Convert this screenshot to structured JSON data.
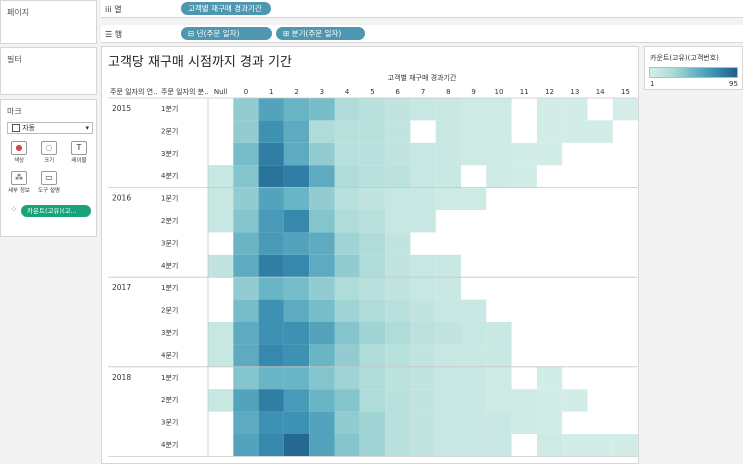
{
  "sidebar": {
    "pages_label": "페이지",
    "filters_label": "필터",
    "marks_label": "마크",
    "marks_type": "자동",
    "buttons": [
      {
        "label": "색상",
        "icon": "color-icon"
      },
      {
        "label": "크기",
        "icon": "size-icon"
      },
      {
        "label": "레이블",
        "icon": "label-icon"
      },
      {
        "label": "세부 정보",
        "icon": "detail-icon"
      },
      {
        "label": "도구 설명",
        "icon": "tooltip-icon"
      }
    ],
    "color_pill": "카운트(고유)(고..."
  },
  "shelves": {
    "columns_label": "열",
    "columns_pill": "고객별 재구매 경과기간",
    "rows_label": "행",
    "rows_pills": [
      "년(주문 일자)",
      "분기(주문 일자)"
    ]
  },
  "viz": {
    "title": "고객당 재구매 시점까지 경과 기간",
    "col_header_title": "고객별 재구매 경과기간",
    "row_header_1": "주문 일자의 연..",
    "row_header_2": "주문 일자의 분..",
    "columns": [
      "Null",
      "0",
      "1",
      "2",
      "3",
      "4",
      "5",
      "6",
      "7",
      "8",
      "9",
      "10",
      "11",
      "12",
      "13",
      "14",
      "15"
    ],
    "years": [
      "2015",
      "2016",
      "2017",
      "2018"
    ],
    "quarters": [
      "1분기",
      "2분기",
      "3분기",
      "4분기"
    ]
  },
  "legend": {
    "title": "카운트(고유)(고객번호)",
    "min": "1",
    "max": "95"
  },
  "colors": {
    "scale_low": "#d9f0eb",
    "scale_high": "#1f5f8a"
  },
  "chart_data": {
    "type": "heatmap",
    "title": "고객당 재구매 시점까지 경과 기간",
    "xlabel": "고객별 재구매 경과기간",
    "x": [
      "Null",
      "0",
      "1",
      "2",
      "3",
      "4",
      "5",
      "6",
      "7",
      "8",
      "9",
      "10",
      "11",
      "12",
      "13",
      "14",
      "15"
    ],
    "y": [
      "2015 1분기",
      "2015 2분기",
      "2015 3분기",
      "2015 4분기",
      "2016 1분기",
      "2016 2분기",
      "2016 3분기",
      "2016 4분기",
      "2017 1분기",
      "2017 2분기",
      "2017 3분기",
      "2017 4분기",
      "2018 1분기",
      "2018 2분기",
      "2018 3분기",
      "2018 4분기"
    ],
    "color_range": [
      1,
      95
    ],
    "values": [
      [
        null,
        35,
        60,
        50,
        45,
        25,
        20,
        15,
        12,
        10,
        8,
        8,
        null,
        5,
        5,
        null,
        3
      ],
      [
        null,
        35,
        70,
        55,
        25,
        20,
        20,
        15,
        null,
        10,
        8,
        8,
        null,
        5,
        5,
        5,
        null
      ],
      [
        null,
        45,
        80,
        55,
        35,
        20,
        20,
        15,
        12,
        10,
        8,
        8,
        5,
        5,
        null,
        null,
        null
      ],
      [
        12,
        40,
        85,
        80,
        55,
        25,
        20,
        18,
        12,
        10,
        null,
        8,
        5,
        null,
        null,
        null,
        null
      ],
      [
        12,
        35,
        60,
        50,
        35,
        20,
        15,
        12,
        10,
        8,
        8,
        null,
        null,
        null,
        null,
        null,
        null
      ],
      [
        12,
        40,
        65,
        75,
        40,
        25,
        20,
        12,
        12,
        null,
        null,
        null,
        null,
        null,
        null,
        null,
        null
      ],
      [
        null,
        50,
        65,
        60,
        55,
        30,
        25,
        15,
        null,
        null,
        null,
        null,
        null,
        null,
        null,
        null,
        null
      ],
      [
        15,
        55,
        80,
        75,
        55,
        35,
        25,
        15,
        12,
        10,
        null,
        null,
        null,
        null,
        null,
        null,
        null
      ],
      [
        null,
        35,
        50,
        45,
        35,
        25,
        20,
        15,
        12,
        10,
        null,
        null,
        null,
        null,
        null,
        null,
        null
      ],
      [
        null,
        45,
        70,
        55,
        45,
        30,
        25,
        20,
        15,
        12,
        10,
        null,
        null,
        null,
        null,
        null,
        null
      ],
      [
        12,
        55,
        70,
        70,
        60,
        40,
        30,
        25,
        18,
        15,
        12,
        10,
        null,
        null,
        null,
        null,
        null
      ],
      [
        12,
        55,
        75,
        70,
        50,
        35,
        25,
        20,
        15,
        12,
        10,
        10,
        null,
        null,
        null,
        null,
        null
      ],
      [
        null,
        40,
        50,
        50,
        40,
        30,
        25,
        18,
        15,
        12,
        10,
        8,
        null,
        5,
        null,
        null,
        null
      ],
      [
        12,
        60,
        80,
        65,
        50,
        40,
        25,
        20,
        15,
        12,
        10,
        8,
        8,
        5,
        5,
        null,
        null
      ],
      [
        null,
        55,
        70,
        70,
        60,
        35,
        30,
        20,
        15,
        12,
        10,
        10,
        8,
        5,
        null,
        null,
        null
      ],
      [
        null,
        60,
        75,
        90,
        60,
        40,
        30,
        20,
        15,
        12,
        10,
        10,
        null,
        8,
        5,
        5,
        5
      ]
    ]
  }
}
